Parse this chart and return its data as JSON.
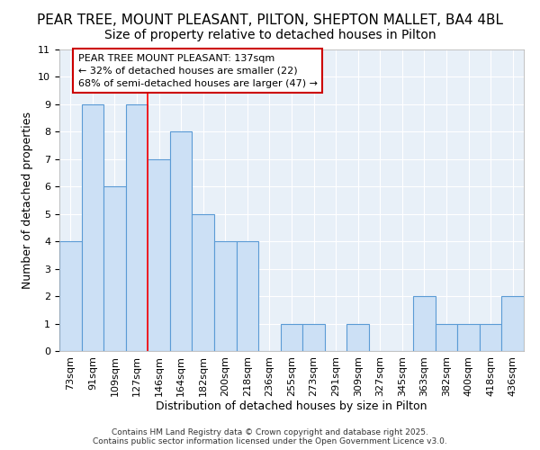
{
  "title_line1": "PEAR TREE, MOUNT PLEASANT, PILTON, SHEPTON MALLET, BA4 4BL",
  "title_line2": "Size of property relative to detached houses in Pilton",
  "xlabel": "Distribution of detached houses by size in Pilton",
  "ylabel": "Number of detached properties",
  "categories": [
    "73sqm",
    "91sqm",
    "109sqm",
    "127sqm",
    "146sqm",
    "164sqm",
    "182sqm",
    "200sqm",
    "218sqm",
    "236sqm",
    "255sqm",
    "273sqm",
    "291sqm",
    "309sqm",
    "327sqm",
    "345sqm",
    "363sqm",
    "382sqm",
    "400sqm",
    "418sqm",
    "436sqm"
  ],
  "values": [
    4,
    9,
    6,
    9,
    7,
    8,
    5,
    4,
    4,
    0,
    1,
    1,
    0,
    1,
    0,
    0,
    2,
    1,
    1,
    1,
    2
  ],
  "bar_color": "#cce0f5",
  "bar_edge_color": "#5b9bd5",
  "background_color": "#e8f0f8",
  "grid_color": "#ffffff",
  "red_line_x": 3.5,
  "annotation_text": "PEAR TREE MOUNT PLEASANT: 137sqm\n← 32% of detached houses are smaller (22)\n68% of semi-detached houses are larger (47) →",
  "annotation_box_color": "#ffffff",
  "annotation_box_edge": "#cc0000",
  "ylim": [
    0,
    11
  ],
  "yticks": [
    0,
    1,
    2,
    3,
    4,
    5,
    6,
    7,
    8,
    9,
    10,
    11
  ],
  "footer_line1": "Contains HM Land Registry data © Crown copyright and database right 2025.",
  "footer_line2": "Contains public sector information licensed under the Open Government Licence v3.0.",
  "title_fontsize": 11,
  "subtitle_fontsize": 10,
  "axis_label_fontsize": 9,
  "tick_fontsize": 8,
  "annotation_fontsize": 8,
  "footer_fontsize": 6.5
}
